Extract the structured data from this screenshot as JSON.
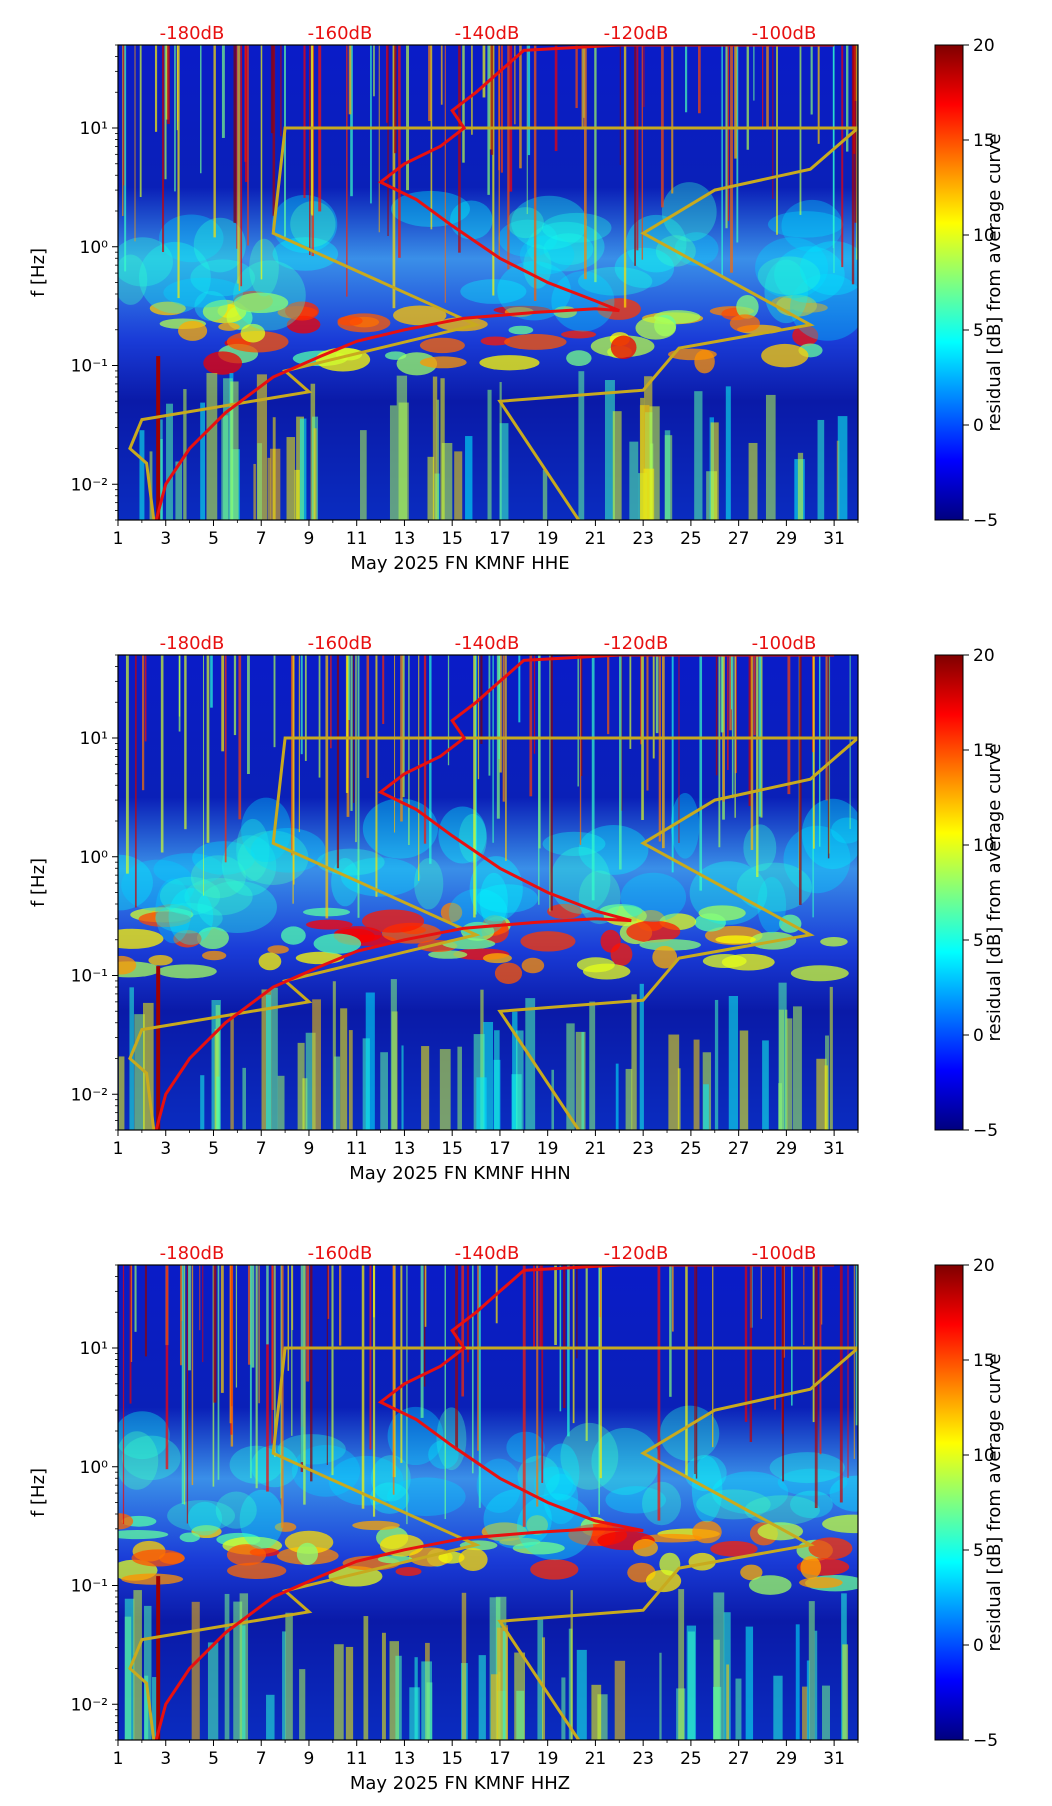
{
  "chart_data": [
    {
      "type": "heatmap",
      "title": "",
      "xlabel": "May 2025 FN KMNF  HHE",
      "ylabel": "f [Hz]",
      "x_range": [
        1,
        32
      ],
      "y_range_hz": [
        0.005,
        50
      ],
      "y_scale": "log",
      "x_ticks": [
        "1",
        "3",
        "5",
        "7",
        "9",
        "11",
        "13",
        "15",
        "17",
        "19",
        "21",
        "23",
        "25",
        "27",
        "29",
        "31"
      ],
      "y_ticks": [
        "10⁻²",
        "10⁻¹",
        "10⁰",
        "10¹"
      ],
      "top_ticks": [
        "-180dB",
        "-160dB",
        "-140dB",
        "-120dB",
        "-100dB"
      ],
      "colorbar": {
        "label": "residual [dB] from average curve",
        "range": [
          -5,
          20
        ],
        "ticks": [
          "20",
          "15",
          "10",
          "5",
          "0",
          "−5"
        ]
      },
      "average_curve": {
        "color": "#e81010",
        "points": [
          [
            2.6,
            0.005
          ],
          [
            3.0,
            0.01
          ],
          [
            4.0,
            0.02
          ],
          [
            5.5,
            0.04
          ],
          [
            7.5,
            0.08
          ],
          [
            9.5,
            0.12
          ],
          [
            11,
            0.16
          ],
          [
            13,
            0.2
          ],
          [
            15.5,
            0.25
          ],
          [
            18.5,
            0.28
          ],
          [
            21,
            0.3
          ],
          [
            22,
            0.29
          ],
          [
            21,
            0.35
          ],
          [
            19,
            0.5
          ],
          [
            17,
            0.8
          ],
          [
            15,
            1.5
          ],
          [
            13.5,
            2.5
          ],
          [
            12,
            3.5
          ],
          [
            13,
            5
          ],
          [
            14.5,
            7
          ],
          [
            15.5,
            10
          ],
          [
            15.0,
            14
          ],
          [
            16,
            20
          ],
          [
            17,
            30
          ],
          [
            18,
            45
          ],
          [
            22,
            50
          ],
          [
            31,
            50
          ]
        ]
      },
      "reference_curve": {
        "color": "#c8aa1e",
        "points": [
          [
            20.3,
            0.005
          ],
          [
            17,
            0.05
          ],
          [
            23,
            0.062
          ],
          [
            24.5,
            0.14
          ],
          [
            30,
            0.22
          ],
          [
            23,
            1.3
          ],
          [
            26,
            3
          ],
          [
            30,
            4.5
          ],
          [
            32,
            10
          ],
          [
            8,
            10
          ],
          [
            7.5,
            1.3
          ],
          [
            16,
            0.22
          ],
          [
            8,
            0.09
          ],
          [
            9,
            0.06
          ],
          [
            2,
            0.035
          ],
          [
            1.5,
            0.02
          ],
          [
            2.2,
            0.015
          ],
          [
            2.5,
            0.005
          ]
        ]
      }
    },
    {
      "type": "heatmap",
      "title": "",
      "xlabel": "May 2025 FN KMNF  HHN",
      "ylabel": "f [Hz]",
      "x_range": [
        1,
        32
      ],
      "y_range_hz": [
        0.005,
        50
      ],
      "y_scale": "log",
      "x_ticks": [
        "1",
        "3",
        "5",
        "7",
        "9",
        "11",
        "13",
        "15",
        "17",
        "19",
        "21",
        "23",
        "25",
        "27",
        "29",
        "31"
      ],
      "y_ticks": [
        "10⁻²",
        "10⁻¹",
        "10⁰",
        "10¹"
      ],
      "top_ticks": [
        "-180dB",
        "-160dB",
        "-140dB",
        "-120dB",
        "-100dB"
      ],
      "colorbar": {
        "label": "residual [dB] from average curve",
        "range": [
          -5,
          20
        ],
        "ticks": [
          "20",
          "15",
          "10",
          "5",
          "0",
          "−5"
        ]
      },
      "average_curve": {
        "color": "#e81010",
        "points": [
          [
            2.6,
            0.005
          ],
          [
            3.0,
            0.01
          ],
          [
            4.0,
            0.02
          ],
          [
            5.5,
            0.04
          ],
          [
            7.5,
            0.08
          ],
          [
            9.5,
            0.12
          ],
          [
            11,
            0.16
          ],
          [
            13,
            0.2
          ],
          [
            15.5,
            0.25
          ],
          [
            18.5,
            0.28
          ],
          [
            21,
            0.3
          ],
          [
            22.5,
            0.29
          ],
          [
            21,
            0.35
          ],
          [
            19,
            0.5
          ],
          [
            17,
            0.8
          ],
          [
            15,
            1.5
          ],
          [
            13.5,
            2.5
          ],
          [
            12,
            3.5
          ],
          [
            13,
            5
          ],
          [
            14.5,
            7
          ],
          [
            15.5,
            10
          ],
          [
            15.0,
            14
          ],
          [
            16,
            20
          ],
          [
            17,
            30
          ],
          [
            18,
            45
          ],
          [
            22,
            50
          ],
          [
            31,
            50
          ]
        ]
      },
      "reference_curve": {
        "color": "#c8aa1e",
        "points": [
          [
            20.3,
            0.005
          ],
          [
            17,
            0.05
          ],
          [
            23,
            0.062
          ],
          [
            24.5,
            0.14
          ],
          [
            30,
            0.22
          ],
          [
            23,
            1.3
          ],
          [
            26,
            3
          ],
          [
            30,
            4.5
          ],
          [
            32,
            10
          ],
          [
            8,
            10
          ],
          [
            7.5,
            1.3
          ],
          [
            16,
            0.22
          ],
          [
            8,
            0.09
          ],
          [
            9,
            0.06
          ],
          [
            2,
            0.035
          ],
          [
            1.5,
            0.02
          ],
          [
            2.2,
            0.015
          ],
          [
            2.5,
            0.005
          ]
        ]
      }
    },
    {
      "type": "heatmap",
      "title": "",
      "xlabel": "May 2025 FN KMNF  HHZ",
      "ylabel": "f [Hz]",
      "x_range": [
        1,
        32
      ],
      "y_range_hz": [
        0.005,
        50
      ],
      "y_scale": "log",
      "x_ticks": [
        "1",
        "3",
        "5",
        "7",
        "9",
        "11",
        "13",
        "15",
        "17",
        "19",
        "21",
        "23",
        "25",
        "27",
        "29",
        "31"
      ],
      "y_ticks": [
        "10⁻²",
        "10⁻¹",
        "10⁰",
        "10¹"
      ],
      "top_ticks": [
        "-180dB",
        "-160dB",
        "-140dB",
        "-120dB",
        "-100dB"
      ],
      "colorbar": {
        "label": "residual [dB] from average curve",
        "range": [
          -5,
          20
        ],
        "ticks": [
          "20",
          "15",
          "10",
          "5",
          "0",
          "−5"
        ]
      },
      "average_curve": {
        "color": "#e81010",
        "points": [
          [
            2.6,
            0.005
          ],
          [
            3.0,
            0.01
          ],
          [
            4.0,
            0.02
          ],
          [
            5.5,
            0.04
          ],
          [
            7.5,
            0.08
          ],
          [
            9.5,
            0.12
          ],
          [
            11,
            0.16
          ],
          [
            13,
            0.2
          ],
          [
            15.5,
            0.25
          ],
          [
            18.5,
            0.28
          ],
          [
            21,
            0.3
          ],
          [
            23,
            0.29
          ],
          [
            21,
            0.35
          ],
          [
            19,
            0.5
          ],
          [
            17,
            0.8
          ],
          [
            15,
            1.5
          ],
          [
            13.5,
            2.5
          ],
          [
            12,
            3.5
          ],
          [
            13,
            5
          ],
          [
            14.5,
            7
          ],
          [
            15.5,
            10
          ],
          [
            15.0,
            14
          ],
          [
            16,
            20
          ],
          [
            17,
            30
          ],
          [
            18,
            45
          ],
          [
            22,
            50
          ],
          [
            31,
            50
          ]
        ]
      },
      "reference_curve": {
        "color": "#c8aa1e",
        "points": [
          [
            20.3,
            0.005
          ],
          [
            17,
            0.05
          ],
          [
            23,
            0.062
          ],
          [
            24.5,
            0.14
          ],
          [
            30,
            0.22
          ],
          [
            23,
            1.3
          ],
          [
            26,
            3
          ],
          [
            30,
            4.5
          ],
          [
            32,
            10
          ],
          [
            8,
            10
          ],
          [
            7.5,
            1.3
          ],
          [
            16,
            0.22
          ],
          [
            8,
            0.09
          ],
          [
            9,
            0.06
          ],
          [
            2,
            0.035
          ],
          [
            1.5,
            0.02
          ],
          [
            2.2,
            0.015
          ],
          [
            2.5,
            0.005
          ]
        ]
      }
    }
  ]
}
